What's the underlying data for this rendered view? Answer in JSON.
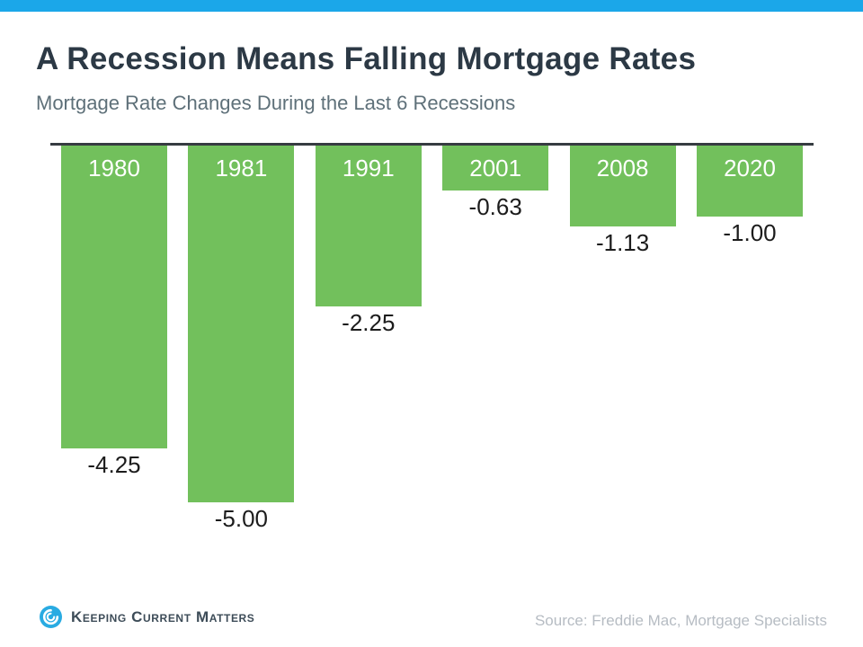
{
  "header": {
    "title": "A Recession Means Falling Mortgage Rates",
    "subtitle": "Mortgage Rate Changes During the Last 6 Recessions"
  },
  "chart_data": {
    "type": "bar",
    "orientation": "vertical",
    "title": "A Recession Means Falling Mortgage Rates",
    "subtitle": "Mortgage Rate Changes During the Last 6 Recessions",
    "categories": [
      "1980",
      "1981",
      "1991",
      "2001",
      "2008",
      "2020"
    ],
    "values": [
      -4.25,
      -5.0,
      -2.25,
      -0.63,
      -1.13,
      -1.0
    ],
    "value_labels": [
      "-4.25",
      "-5.00",
      "-2.25",
      "-0.63",
      "-1.13",
      "-1.00"
    ],
    "xlabel": "",
    "ylabel": "",
    "ylim": [
      -5.5,
      0
    ],
    "baseline": 0,
    "grid": false,
    "legend": false,
    "bar_color": "#72c05c",
    "category_label_color": "#ffffff",
    "value_label_color": "#1c1c1c"
  },
  "footer": {
    "logo_text": "Keeping Current Matters",
    "source": "Source: Freddie Mac, Mortgage Specialists"
  },
  "colors": {
    "top_bar": "#1ba7e9",
    "title": "#2c3945",
    "subtitle": "#5e7079",
    "baseline_axis": "#363b41",
    "bar_green": "#72c05c",
    "source_text": "#b6bcc3",
    "logo_blue": "#29abe2",
    "logo_text": "#3d4c58"
  }
}
